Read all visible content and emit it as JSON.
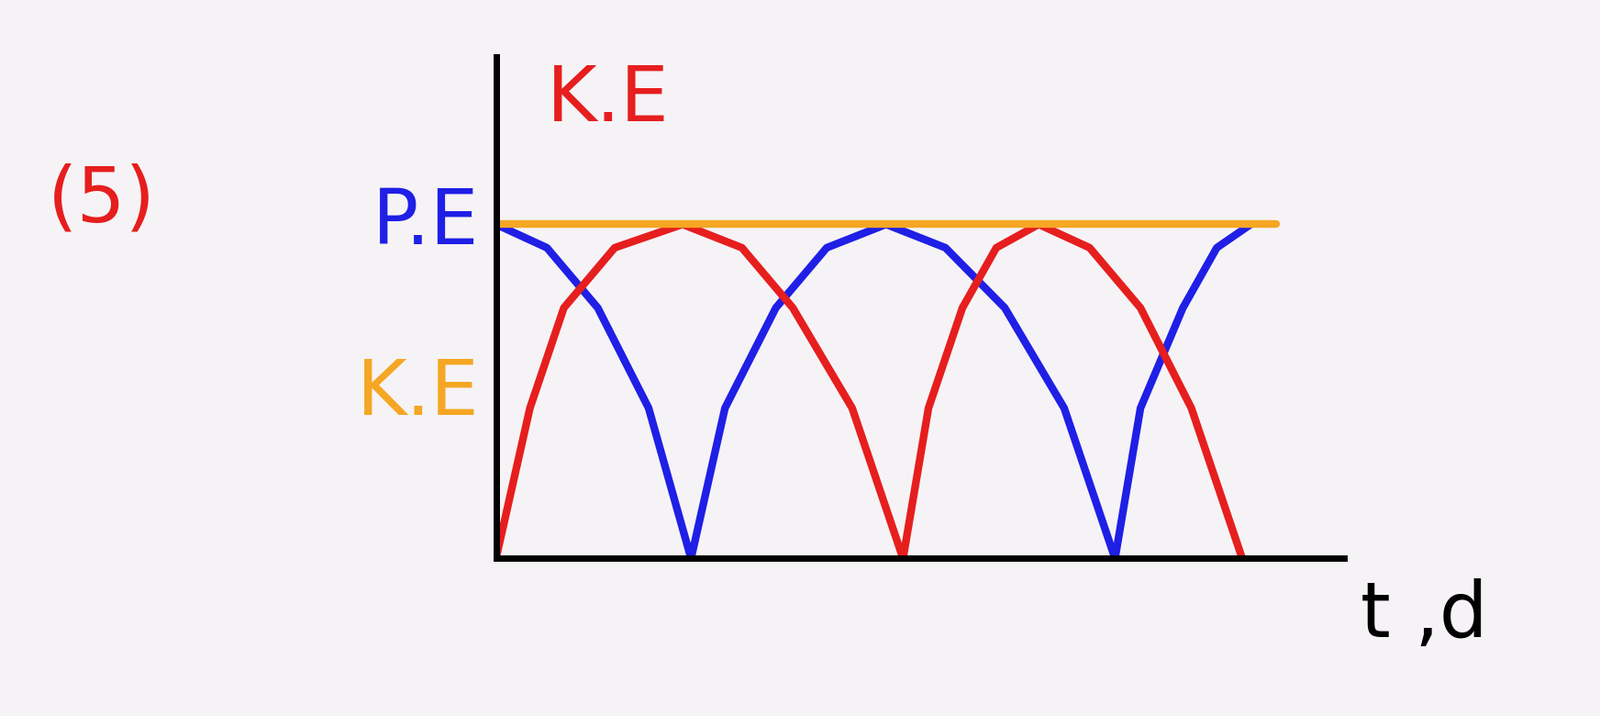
{
  "chart_data": {
    "type": "line",
    "annotation": "(5)",
    "x_label": "t ,d",
    "xlim": [
      0,
      10
    ],
    "ylim": [
      0,
      15
    ],
    "xticks": [],
    "yticks": [],
    "tick_labels": false,
    "grid": false,
    "series": [
      {
        "name": "P.E",
        "color": "#1f1fe6",
        "x": [
          0,
          0.6,
          1.2,
          1.8,
          2.3,
          2.7,
          3.3,
          3.9,
          4.6,
          5.3,
          6.0,
          6.7,
          7.3,
          7.6,
          8.1,
          8.5,
          8.9
        ],
        "values": [
          10,
          9.3,
          7.5,
          4.5,
          0,
          4.5,
          7.5,
          9.3,
          10,
          9.3,
          7.5,
          4.5,
          0,
          4.5,
          7.5,
          9.3,
          10
        ]
      },
      {
        "name": "K.E",
        "color": "#e61e1e",
        "x": [
          0,
          0.4,
          0.8,
          1.4,
          2.2,
          2.9,
          3.5,
          4.2,
          4.8,
          5.1,
          5.5,
          5.9,
          6.4,
          7.0,
          7.6,
          8.2,
          8.8
        ],
        "values": [
          0,
          4.5,
          7.5,
          9.3,
          10,
          9.3,
          7.5,
          4.5,
          0,
          4.5,
          7.5,
          9.3,
          10,
          9.3,
          7.5,
          4.5,
          0
        ]
      },
      {
        "name": "K.E",
        "color": "#f5a623",
        "x": [
          0,
          9.2
        ],
        "values": [
          10,
          10
        ]
      }
    ]
  }
}
